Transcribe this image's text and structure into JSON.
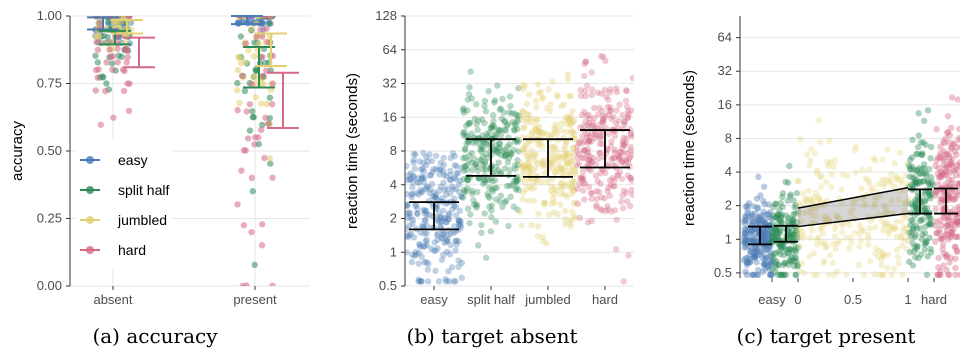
{
  "colors": {
    "easy": "#4a7ab5",
    "split half": "#2e8b57",
    "jumbled": "#e3cf6f",
    "hard": "#d46a85",
    "grid": "#e6e6e6",
    "bar": "#000000"
  },
  "legend": {
    "title": "",
    "items": [
      {
        "label": "easy",
        "color": "#4a7ab5"
      },
      {
        "label": "split half",
        "color": "#2e8b57"
      },
      {
        "label": "jumbled",
        "color": "#e3cf6f"
      },
      {
        "label": "hard",
        "color": "#d46a85"
      }
    ]
  },
  "captions": [
    "(a) accuracy",
    "(b) target absent",
    "(c) target present"
  ],
  "chart_data": [
    {
      "type": "scatter",
      "title": "",
      "ylabel": "accuracy",
      "xlabel": "",
      "ylim": [
        0,
        1
      ],
      "y_ticks": [
        "0.00",
        "0.25",
        "0.50",
        "0.75",
        "1.00"
      ],
      "categories": [
        "absent",
        "present"
      ],
      "grid": true,
      "series": [
        {
          "name": "easy",
          "means": [
            0.97,
            0.985
          ],
          "ci": [
            [
              0.95,
              0.995
            ],
            [
              0.97,
              1.0
            ]
          ]
        },
        {
          "name": "split half",
          "means": [
            0.92,
            0.81
          ],
          "ci": [
            [
              0.895,
              0.945
            ],
            [
              0.735,
              0.885
            ]
          ]
        },
        {
          "name": "jumbled",
          "means": [
            0.96,
            0.875
          ],
          "ci": [
            [
              0.935,
              0.985
            ],
            [
              0.815,
              0.935
            ]
          ]
        },
        {
          "name": "hard",
          "means": [
            0.865,
            0.69
          ],
          "ci": [
            [
              0.81,
              0.92
            ],
            [
              0.585,
              0.79
            ]
          ]
        }
      ]
    },
    {
      "type": "scatter",
      "title": "",
      "ylabel": "reaction time (seconds)",
      "xlabel": "",
      "yscale": "log",
      "ylim": [
        0.5,
        128
      ],
      "y_ticks": [
        "0.5",
        "1",
        "2",
        "4",
        "8",
        "16",
        "32",
        "64",
        "128"
      ],
      "categories": [
        "easy",
        "split half",
        "jumbled",
        "hard"
      ],
      "grid": true,
      "series": [
        {
          "name": "easy",
          "mean": 2.15,
          "ci": [
            1.6,
            2.8
          ]
        },
        {
          "name": "split half",
          "mean": 7.0,
          "ci": [
            4.8,
            10.2
          ]
        },
        {
          "name": "jumbled",
          "mean": 7.0,
          "ci": [
            4.7,
            10.2
          ]
        },
        {
          "name": "hard",
          "mean": 8.3,
          "ci": [
            5.7,
            12.3
          ]
        }
      ]
    },
    {
      "type": "scatter",
      "title": "",
      "ylabel": "reaction time (seconds)",
      "xlabel": "",
      "yscale": "log",
      "ylim": [
        0.45,
        100
      ],
      "y_ticks": [
        "0.5",
        "1",
        "2",
        "4",
        "8",
        "16",
        "32",
        "64"
      ],
      "x_ticks": [
        "easy",
        "0",
        "0.5",
        "1",
        "hard"
      ],
      "grid": true,
      "series": [
        {
          "name": "easy",
          "mean": 1.1,
          "ci": [
            0.9,
            1.3
          ]
        },
        {
          "name": "split half",
          "mean": 1.12,
          "ci": [
            0.95,
            1.32
          ]
        },
        {
          "name": "jumbled",
          "fit_band": {
            "x": [
              0,
              1
            ],
            "upper": [
              1.9,
              2.9
            ],
            "lower": [
              1.3,
              1.7
            ]
          }
        },
        {
          "name": "split half",
          "mean": 2.2,
          "ci": [
            1.7,
            2.8
          ]
        },
        {
          "name": "hard",
          "mean": 2.2,
          "ci": [
            1.7,
            2.85
          ]
        }
      ]
    }
  ]
}
